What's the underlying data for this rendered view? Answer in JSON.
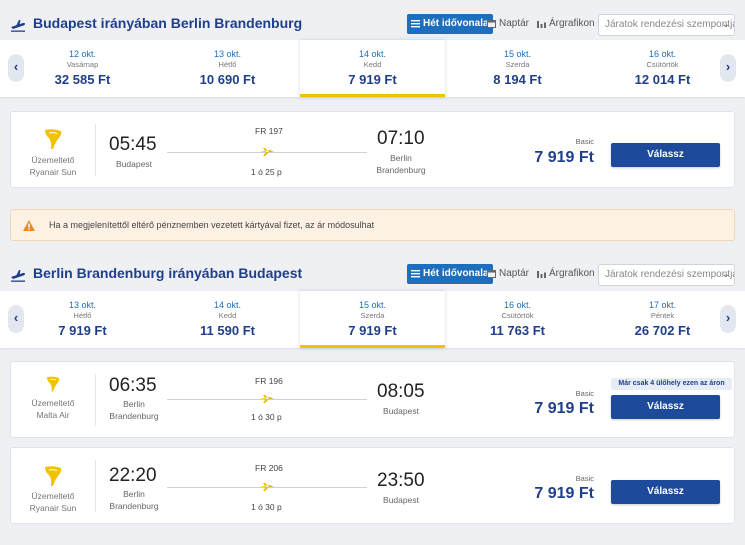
{
  "colors": {
    "brand": "#1e3f8b",
    "accent": "#1d6fbe",
    "selected_underline": "#f2c200",
    "button": "#1e4a9c",
    "ryanair": "#f2c200"
  },
  "view_tabs": {
    "timeline": "Hét idővonala",
    "calendar": "Naptár",
    "chart": "Árgrafikon"
  },
  "sort": {
    "placeholder": "Járatok rendezési szempontja:"
  },
  "warning": {
    "icon": "warning-triangle-icon",
    "text": "Ha a megjelenítettől eltérő pénznemben vezetett kártyával fizet, az ár módosulhat"
  },
  "outbound": {
    "title": "Budapest irányában Berlin Brandenburg",
    "days": [
      {
        "date": "12 okt.",
        "weekday": "Vasárnap",
        "price": "32 585 Ft",
        "selected": false
      },
      {
        "date": "13 okt.",
        "weekday": "Hétfő",
        "price": "10 690 Ft",
        "selected": false
      },
      {
        "date": "14 okt.",
        "weekday": "Kedd",
        "price": "7 919 Ft",
        "selected": true
      },
      {
        "date": "15 okt.",
        "weekday": "Szerda",
        "price": "8 194 Ft",
        "selected": false
      },
      {
        "date": "16 okt.",
        "weekday": "Csütörtök",
        "price": "12 014 Ft",
        "selected": false
      }
    ],
    "flights": [
      {
        "operator_label": "Üzemeltető",
        "operator": "Ryanair Sun",
        "dep_time": "05:45",
        "dep_city": "Budapest",
        "flight_no": "FR 197",
        "duration": "1 ó 25 p",
        "arr_time": "07:10",
        "arr_city_1": "Berlin",
        "arr_city_2": "Brandenburg",
        "fare": "Basic",
        "price": "7 919 Ft",
        "button": "Válassz"
      }
    ]
  },
  "inbound": {
    "title": "Berlin Brandenburg irányában Budapest",
    "days": [
      {
        "date": "13 okt.",
        "weekday": "Hétfő",
        "price": "7 919 Ft",
        "selected": false
      },
      {
        "date": "14 okt.",
        "weekday": "Kedd",
        "price": "11 590 Ft",
        "selected": false
      },
      {
        "date": "15 okt.",
        "weekday": "Szerda",
        "price": "7 919 Ft",
        "selected": true
      },
      {
        "date": "16 okt.",
        "weekday": "Csütörtök",
        "price": "11 763 Ft",
        "selected": false
      },
      {
        "date": "17 okt.",
        "weekday": "Péntek",
        "price": "26 702 Ft",
        "selected": false
      }
    ],
    "flights": [
      {
        "operator_label": "Üzemeltető",
        "operator": "Malta Air",
        "dep_time": "06:35",
        "dep_city_1": "Berlin",
        "dep_city_2": "Brandenburg",
        "flight_no": "FR 196",
        "duration": "1 ó 30 p",
        "arr_time": "08:05",
        "arr_city": "Budapest",
        "fare": "Basic",
        "price": "7 919 Ft",
        "button": "Válassz",
        "badge": "Már csak 4 ülőhely ezen az áron"
      },
      {
        "operator_label": "Üzemeltető",
        "operator": "Ryanair Sun",
        "dep_time": "22:20",
        "dep_city_1": "Berlin",
        "dep_city_2": "Brandenburg",
        "flight_no": "FR 206",
        "duration": "1 ó 30 p",
        "arr_time": "23:50",
        "arr_city": "Budapest",
        "fare": "Basic",
        "price": "7 919 Ft",
        "button": "Válassz"
      }
    ]
  }
}
